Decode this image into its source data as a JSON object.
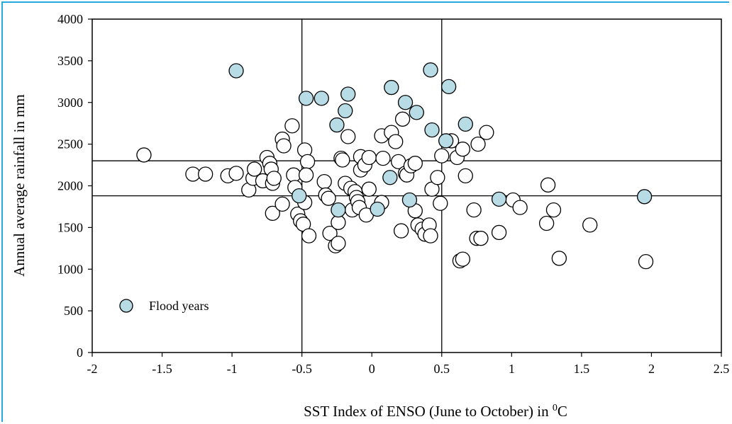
{
  "chart_data": {
    "type": "scatter",
    "title": "",
    "xlabel": "SST Index of ENSO (June to October) in ",
    "xlabel_unit_sup": "0",
    "xlabel_unit": "C",
    "ylabel": "Annual average  rainfall in  mm",
    "xlim": [
      -2,
      2.5
    ],
    "ylim": [
      0,
      4000
    ],
    "x_ticks": [
      "-2",
      "-1.5",
      "-1",
      "-0.5",
      "0",
      "0.5",
      "1",
      "1.5",
      "2",
      "2.5"
    ],
    "y_ticks": [
      "0",
      "500",
      "1000",
      "1500",
      "2000",
      "2500",
      "3000",
      "3500",
      "4000"
    ],
    "grid": false,
    "legend_position": "bottom-left",
    "reference_lines": {
      "vertical_x": [
        -0.5,
        0.5
      ],
      "horizontal_y": [
        2300,
        1880
      ]
    },
    "colors": {
      "flood": "#b8dce6",
      "normal": "#ffffff",
      "edge": "#000000",
      "frame": "#29a8e0"
    },
    "series": [
      {
        "name": "Flood years",
        "points": [
          [
            -0.97,
            3380
          ],
          [
            -0.47,
            3050
          ],
          [
            -0.36,
            3050
          ],
          [
            -0.17,
            3100
          ],
          [
            -0.19,
            2900
          ],
          [
            0.14,
            3180
          ],
          [
            0.42,
            3390
          ],
          [
            0.55,
            3190
          ],
          [
            0.24,
            3000
          ],
          [
            0.32,
            2880
          ],
          [
            -0.25,
            2730
          ],
          [
            0.43,
            2670
          ],
          [
            0.67,
            2740
          ],
          [
            0.53,
            2540
          ],
          [
            -0.52,
            1880
          ],
          [
            -0.24,
            1710
          ],
          [
            0.04,
            1720
          ],
          [
            0.27,
            1830
          ],
          [
            0.13,
            2100
          ],
          [
            0.91,
            1840
          ],
          [
            1.95,
            1870
          ]
        ]
      },
      {
        "name": "",
        "points": [
          [
            -1.63,
            2370
          ],
          [
            -1.28,
            2140
          ],
          [
            -1.19,
            2140
          ],
          [
            -1.03,
            2120
          ],
          [
            -0.97,
            2150
          ],
          [
            -0.88,
            1950
          ],
          [
            -0.85,
            2090
          ],
          [
            -0.84,
            2200
          ],
          [
            -0.78,
            2060
          ],
          [
            -0.75,
            2340
          ],
          [
            -0.73,
            2270
          ],
          [
            -0.72,
            2200
          ],
          [
            -0.71,
            2030
          ],
          [
            -0.7,
            2090
          ],
          [
            -0.71,
            1670
          ],
          [
            -0.64,
            2560
          ],
          [
            -0.63,
            2480
          ],
          [
            -0.64,
            1780
          ],
          [
            -0.57,
            2720
          ],
          [
            -0.56,
            2130
          ],
          [
            -0.55,
            1980
          ],
          [
            -0.53,
            1660
          ],
          [
            -0.51,
            1580
          ],
          [
            -0.49,
            1540
          ],
          [
            -0.48,
            2430
          ],
          [
            -0.46,
            2290
          ],
          [
            -0.47,
            2130
          ],
          [
            -0.48,
            1800
          ],
          [
            -0.45,
            1400
          ],
          [
            -0.34,
            2050
          ],
          [
            -0.33,
            1890
          ],
          [
            -0.31,
            1850
          ],
          [
            -0.3,
            1430
          ],
          [
            -0.26,
            1280
          ],
          [
            -0.24,
            1310
          ],
          [
            -0.24,
            1560
          ],
          [
            -0.22,
            2330
          ],
          [
            -0.21,
            2310
          ],
          [
            -0.19,
            2030
          ],
          [
            -0.17,
            2590
          ],
          [
            -0.15,
            1970
          ],
          [
            -0.14,
            1710
          ],
          [
            -0.12,
            1930
          ],
          [
            -0.11,
            1860
          ],
          [
            -0.1,
            1810
          ],
          [
            -0.09,
            1740
          ],
          [
            -0.08,
            2190
          ],
          [
            -0.08,
            2350
          ],
          [
            -0.05,
            2250
          ],
          [
            -0.04,
            1650
          ],
          [
            -0.02,
            1960
          ],
          [
            -0.02,
            2340
          ],
          [
            0.07,
            1800
          ],
          [
            0.07,
            2600
          ],
          [
            0.08,
            2330
          ],
          [
            0.14,
            2640
          ],
          [
            0.17,
            2530
          ],
          [
            0.19,
            2290
          ],
          [
            0.21,
            1460
          ],
          [
            0.22,
            2800
          ],
          [
            0.24,
            2150
          ],
          [
            0.25,
            2130
          ],
          [
            0.28,
            2240
          ],
          [
            0.31,
            2270
          ],
          [
            0.31,
            1700
          ],
          [
            0.33,
            1530
          ],
          [
            0.36,
            1480
          ],
          [
            0.38,
            1420
          ],
          [
            0.41,
            1530
          ],
          [
            0.42,
            1400
          ],
          [
            0.43,
            1960
          ],
          [
            0.47,
            2100
          ],
          [
            0.49,
            1790
          ],
          [
            0.5,
            2360
          ],
          [
            0.57,
            2540
          ],
          [
            0.61,
            2340
          ],
          [
            0.63,
            1100
          ],
          [
            0.65,
            1120
          ],
          [
            0.65,
            2440
          ],
          [
            0.67,
            2120
          ],
          [
            0.73,
            1710
          ],
          [
            0.75,
            1370
          ],
          [
            0.78,
            1370
          ],
          [
            0.76,
            2500
          ],
          [
            0.82,
            2640
          ],
          [
            0.91,
            1440
          ],
          [
            1.01,
            1830
          ],
          [
            1.06,
            1740
          ],
          [
            1.25,
            1550
          ],
          [
            1.26,
            2010
          ],
          [
            1.3,
            1710
          ],
          [
            1.34,
            1130
          ],
          [
            1.56,
            1530
          ],
          [
            1.96,
            1090
          ]
        ]
      }
    ]
  }
}
